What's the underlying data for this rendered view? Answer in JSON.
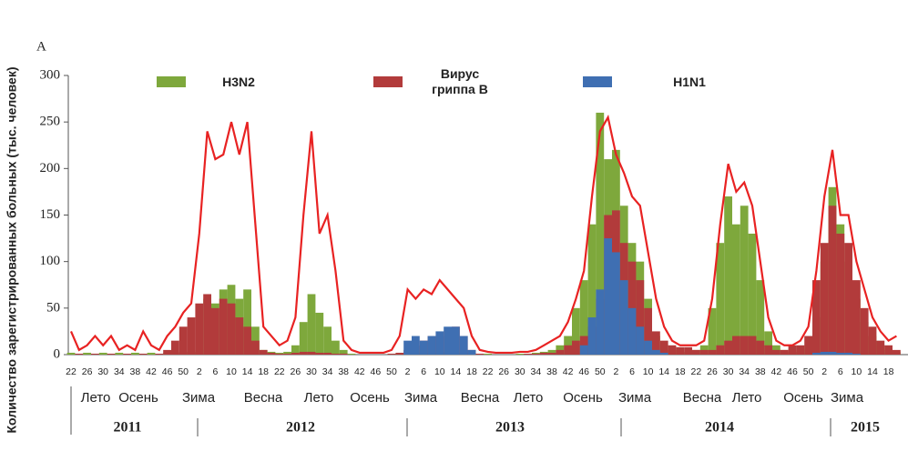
{
  "chart_data": {
    "type": "bar",
    "panel_label": "A",
    "y_label": "Количество зарегистрированных больных (тыс. человек)",
    "categories": [
      "22",
      null,
      "26",
      null,
      "30",
      null,
      "34",
      null,
      "38",
      null,
      "42",
      null,
      "46",
      null,
      "50",
      null,
      "2",
      null,
      "6",
      null,
      "10",
      null,
      "14",
      null,
      "18",
      null,
      "22",
      null,
      "26",
      null,
      "30",
      null,
      "34",
      null,
      "38",
      null,
      "42",
      null,
      "46",
      null,
      "50",
      null,
      "2",
      null,
      "6",
      null,
      "10",
      null,
      "14",
      null,
      "18",
      null,
      "22",
      null,
      "26",
      null,
      "30",
      null,
      "34",
      null,
      "38",
      null,
      "42",
      null,
      "46",
      null,
      "50",
      null,
      "2",
      null,
      "6",
      null,
      "10",
      null,
      "14",
      null,
      "18",
      null,
      "22",
      null,
      "26",
      null,
      "30",
      null,
      "34",
      null,
      "38",
      null,
      "42",
      null,
      "46",
      null,
      "50",
      null,
      "2",
      null,
      "6",
      null,
      "10",
      null,
      "14",
      null,
      "18",
      null
    ],
    "series": [
      {
        "name": "H3N2",
        "color": "#7ea83c",
        "values": [
          2,
          1,
          2,
          1,
          2,
          1,
          2,
          1,
          2,
          1,
          2,
          1,
          2,
          2,
          3,
          3,
          5,
          60,
          55,
          70,
          75,
          60,
          70,
          30,
          5,
          3,
          2,
          3,
          10,
          35,
          65,
          45,
          30,
          15,
          5,
          1,
          0,
          0,
          0,
          0,
          1,
          1,
          2,
          2,
          2,
          2,
          3,
          3,
          2,
          2,
          2,
          1,
          1,
          0,
          0,
          0,
          1,
          1,
          2,
          3,
          5,
          10,
          20,
          50,
          80,
          140,
          260,
          210,
          220,
          160,
          120,
          100,
          60,
          20,
          10,
          5,
          3,
          3,
          5,
          10,
          50,
          120,
          170,
          140,
          160,
          130,
          80,
          25,
          10,
          5,
          3,
          5,
          10,
          40,
          100,
          180,
          140,
          100,
          60,
          35,
          20,
          10,
          5,
          3
        ]
      },
      {
        "name": "Вирус гриппа В",
        "color": "#b23b3b",
        "values": [
          0,
          1,
          0,
          1,
          0,
          1,
          0,
          1,
          0,
          1,
          0,
          1,
          5,
          15,
          30,
          40,
          55,
          65,
          50,
          60,
          55,
          40,
          30,
          15,
          5,
          2,
          1,
          1,
          2,
          3,
          3,
          2,
          2,
          1,
          1,
          0,
          0,
          0,
          0,
          0,
          1,
          2,
          5,
          10,
          15,
          20,
          20,
          25,
          30,
          20,
          5,
          1,
          0,
          0,
          0,
          0,
          0,
          1,
          1,
          2,
          2,
          5,
          10,
          15,
          20,
          30,
          60,
          150,
          155,
          120,
          100,
          80,
          50,
          25,
          15,
          10,
          8,
          8,
          5,
          5,
          5,
          10,
          15,
          20,
          20,
          20,
          15,
          10,
          5,
          5,
          10,
          10,
          20,
          80,
          120,
          160,
          130,
          120,
          80,
          50,
          30,
          15,
          10,
          5
        ]
      },
      {
        "name": "H1N1",
        "color": "#3f6fb2",
        "values": [
          0,
          0,
          0,
          0,
          0,
          0,
          0,
          0,
          0,
          0,
          0,
          0,
          0,
          0,
          0,
          0,
          0,
          0,
          0,
          0,
          0,
          0,
          0,
          0,
          0,
          0,
          0,
          0,
          0,
          0,
          0,
          0,
          0,
          0,
          0,
          0,
          0,
          0,
          0,
          0,
          0,
          0,
          15,
          20,
          15,
          20,
          25,
          30,
          30,
          20,
          5,
          0,
          0,
          0,
          0,
          0,
          0,
          0,
          0,
          0,
          0,
          0,
          0,
          0,
          10,
          40,
          70,
          125,
          110,
          80,
          50,
          30,
          15,
          5,
          2,
          0,
          0,
          0,
          0,
          0,
          0,
          0,
          0,
          0,
          0,
          0,
          0,
          0,
          0,
          0,
          0,
          0,
          0,
          2,
          3,
          3,
          2,
          2,
          1,
          0,
          0,
          0,
          0,
          0
        ]
      },
      {
        "type": "line",
        "color": "#e82222",
        "values": [
          25,
          5,
          10,
          20,
          10,
          20,
          5,
          10,
          5,
          25,
          10,
          5,
          20,
          30,
          45,
          55,
          130,
          240,
          210,
          215,
          250,
          215,
          250,
          140,
          30,
          20,
          10,
          15,
          40,
          150,
          240,
          130,
          150,
          90,
          15,
          5,
          2,
          2,
          2,
          2,
          5,
          20,
          70,
          60,
          70,
          65,
          80,
          70,
          60,
          50,
          20,
          5,
          3,
          2,
          2,
          2,
          3,
          3,
          5,
          10,
          15,
          20,
          35,
          60,
          90,
          170,
          240,
          255,
          215,
          195,
          170,
          160,
          110,
          60,
          30,
          15,
          10,
          10,
          10,
          15,
          60,
          140,
          205,
          175,
          185,
          160,
          100,
          40,
          15,
          10,
          10,
          15,
          30,
          90,
          170,
          220,
          150,
          150,
          100,
          70,
          40,
          25,
          15,
          20
        ]
      }
    ],
    "ylim": [
      0,
      300
    ],
    "yticks": [
      0,
      50,
      100,
      150,
      200,
      250,
      300
    ],
    "seasons": [
      "Лето",
      "Осень",
      "Зима",
      "Весна",
      "Лето",
      "Осень",
      "Зима",
      "Весна",
      "Лето",
      "Осень",
      "Зима",
      "Весна",
      "Лето",
      "Осень",
      "Зима"
    ],
    "years": [
      "2011",
      "2012",
      "2013",
      "2014",
      "2015"
    ]
  }
}
